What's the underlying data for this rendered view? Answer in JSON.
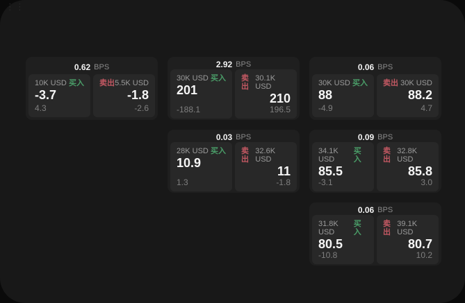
{
  "labels": {
    "buy": "买入",
    "sell": "卖出",
    "bps": "BPS"
  },
  "icons": {
    "drag_handle": "⋮⋮"
  },
  "colors": {
    "backdrop": "#0a0a0a",
    "surface": "#181818",
    "card": "#1f1f1f",
    "panel": "#282828",
    "buy_green": "#4a9d68",
    "sell_red": "#c25862",
    "value_white": "#f5f5f5",
    "muted_gray": "#8a8a8a"
  },
  "cards": [
    {
      "bps": "0.62",
      "buy": {
        "amount": "10K USD",
        "value": "-3.7",
        "delta": "4.3"
      },
      "sell": {
        "amount": "5.5K USD",
        "value": "-1.8",
        "delta": "-2.6"
      }
    },
    {
      "bps": "2.92",
      "buy": {
        "amount": "30K USD",
        "value": "201",
        "delta": "-188.1"
      },
      "sell": {
        "amount": "30.1K USD",
        "value": "210",
        "delta": "196.5"
      }
    },
    {
      "bps": "0.06",
      "buy": {
        "amount": "30K USD",
        "value": "88",
        "delta": "-4.9"
      },
      "sell": {
        "amount": "30K USD",
        "value": "88.2",
        "delta": "4.7"
      }
    },
    {
      "bps": "0.03",
      "buy": {
        "amount": "28K USD",
        "value": "10.9",
        "delta": "1.3"
      },
      "sell": {
        "amount": "32.6K USD",
        "value": "11",
        "delta": "-1.8"
      }
    },
    {
      "bps": "0.09",
      "buy": {
        "amount": "34.1K USD",
        "value": "85.5",
        "delta": "-3.1"
      },
      "sell": {
        "amount": "32.8K USD",
        "value": "85.8",
        "delta": "3.0"
      }
    },
    {
      "bps": "0.06",
      "buy": {
        "amount": "31.8K USD",
        "value": "80.5",
        "delta": "-10.8"
      },
      "sell": {
        "amount": "39.1K USD",
        "value": "80.7",
        "delta": "10.2"
      }
    }
  ]
}
